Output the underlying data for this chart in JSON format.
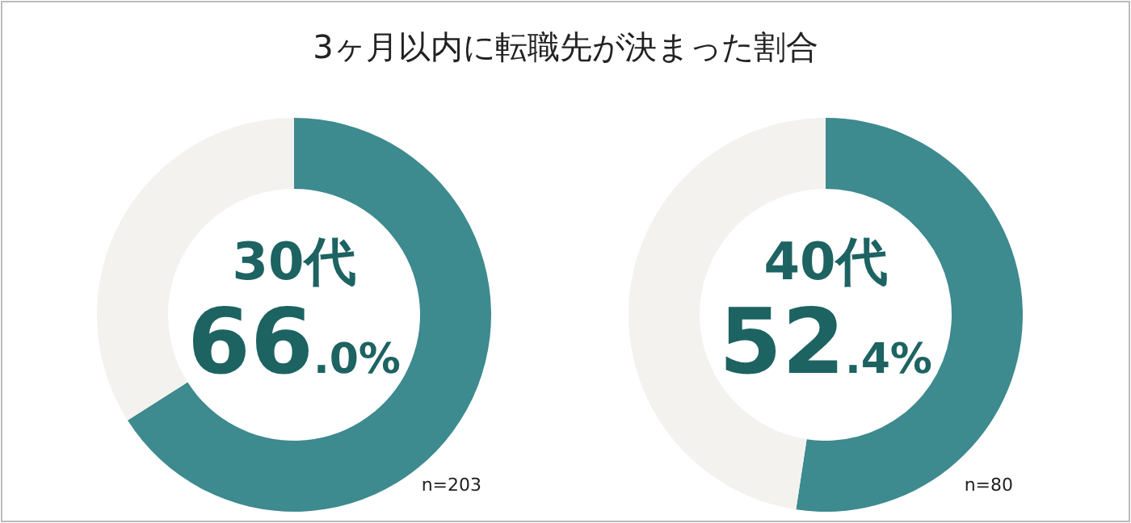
{
  "chart_data": [
    {
      "type": "donut",
      "title": "3ヶ月以内に転職先が決まった割合",
      "subtitle": "30代",
      "categories": [
        null,
        null
      ],
      "values": [
        66.0,
        34.0
      ],
      "colors": [
        "#3d8a8f",
        "#f4f2ee"
      ],
      "value_labels": [
        "66.0%",
        null
      ],
      "annotations": [
        "n=203"
      ]
    },
    {
      "type": "donut",
      "subtitle": "40代",
      "categories": [
        null,
        null
      ],
      "values": [
        52.4,
        47.6
      ],
      "colors": [
        "#3d8a8f",
        "#f4f2ee"
      ],
      "value_labels": [
        "52.4%",
        null
      ],
      "annotations": [
        "n=80"
      ]
    }
  ]
}
